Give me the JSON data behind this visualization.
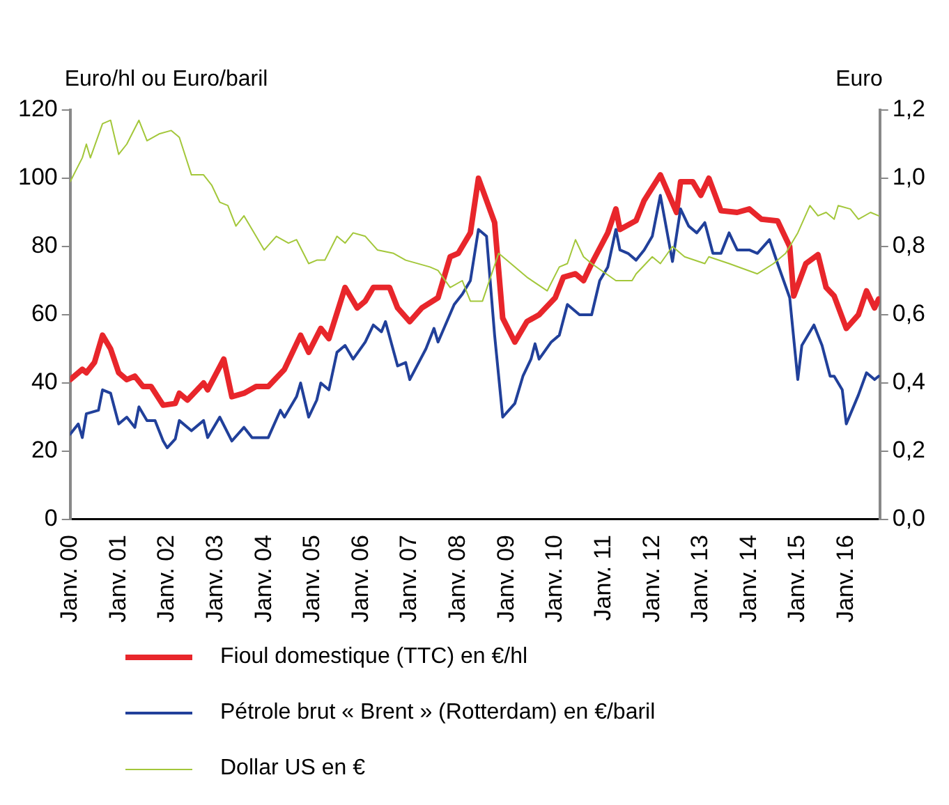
{
  "chart_data": {
    "type": "line",
    "ylabel": "Euro/hl ou Euro/baril",
    "y2label": "Euro",
    "xlim": [
      "2000-01-01",
      "2016-09-10"
    ],
    "xticks": [
      {
        "value": "2000-01",
        "label": "Janv. 00"
      },
      {
        "value": "2001-01",
        "label": "Janv. 01"
      },
      {
        "value": "2002-01",
        "label": "Janv. 02"
      },
      {
        "value": "2003-01",
        "label": "Janv. 03"
      },
      {
        "value": "2004-01",
        "label": "Janv. 04"
      },
      {
        "value": "2005-01",
        "label": "Janv. 05"
      },
      {
        "value": "2006-01",
        "label": "Janv. 06"
      },
      {
        "value": "2007-01",
        "label": "Janv. 07"
      },
      {
        "value": "2008-01",
        "label": "Janv. 08"
      },
      {
        "value": "2009-01",
        "label": "Janv. 09"
      },
      {
        "value": "2010-01",
        "label": "Janv. 10"
      },
      {
        "value": "2011-01",
        "label": "Janv. 11"
      },
      {
        "value": "2012-01",
        "label": "Janv. 12"
      },
      {
        "value": "2013-01",
        "label": "Janv. 13"
      },
      {
        "value": "2014-01",
        "label": "Janv. 14"
      },
      {
        "value": "2015-01",
        "label": "Janv. 15"
      },
      {
        "value": "2016-01",
        "label": "Janv. 16"
      }
    ],
    "ylim": [
      0,
      120
    ],
    "yticks": [
      0,
      20,
      40,
      60,
      80,
      100,
      120
    ],
    "y2lim": [
      0,
      1.2
    ],
    "y2ticks": [
      {
        "value": 0,
        "label": "0,0"
      },
      {
        "value": 0.2,
        "label": "0,2"
      },
      {
        "value": 0.4,
        "label": "0,4"
      },
      {
        "value": 0.6,
        "label": "0,6"
      },
      {
        "value": 0.8,
        "label": "0,8"
      },
      {
        "value": 1,
        "label": "1,0"
      },
      {
        "value": 1.2,
        "label": "1,2"
      }
    ],
    "grid": false,
    "legend": "bottom",
    "marker": "none",
    "line_style": "solid",
    "series": [
      {
        "name": "Fioul domestique (TTC) en €/hl",
        "color": "#e8262b",
        "x": [
          "2000-01",
          "2000-04",
          "2000-05",
          "2000-07",
          "2000-09",
          "2000-11",
          "2001-01",
          "2001-03",
          "2001-05",
          "2001-07",
          "2001-09",
          "2001-12",
          "2002-03",
          "2002-04",
          "2002-06",
          "2002-10",
          "2002-11",
          "2003-03",
          "2003-05",
          "2003-08",
          "2003-11",
          "2004-02",
          "2004-06",
          "2004-10",
          "2004-12",
          "2005-03",
          "2005-05",
          "2005-09",
          "2005-12",
          "2006-02",
          "2006-04",
          "2006-08",
          "2006-10",
          "2007-01",
          "2007-04",
          "2007-08",
          "2007-11",
          "2008-01",
          "2008-04",
          "2008-06",
          "2008-10",
          "2008-12",
          "2009-03",
          "2009-06",
          "2009-09",
          "2010-01",
          "2010-03",
          "2010-06",
          "2010-08",
          "2010-10",
          "2011-02",
          "2011-04",
          "2011-05",
          "2011-09",
          "2011-11",
          "2012-03",
          "2012-07",
          "2012-08",
          "2012-11",
          "2013-01",
          "2013-03",
          "2013-06",
          "2013-10",
          "2014-01",
          "2014-04",
          "2014-08",
          "2014-11",
          "2014-12",
          "2015-03",
          "2015-06",
          "2015-08",
          "2015-10",
          "2016-01",
          "2016-04",
          "2016-06",
          "2016-08",
          "2016-09"
        ],
        "values": [
          41,
          44,
          43,
          46,
          54,
          50,
          43,
          41,
          42,
          39,
          39,
          33.5,
          34,
          37,
          35,
          40,
          38,
          47,
          36,
          37,
          39,
          39,
          44,
          54,
          49,
          56,
          53,
          68,
          62,
          64,
          68,
          68,
          62,
          58,
          62,
          65,
          77,
          78,
          84,
          100,
          87,
          59,
          52,
          58,
          60,
          65,
          71,
          72,
          70,
          75,
          84,
          91,
          85,
          87.6,
          93.5,
          101,
          90,
          99,
          99,
          95,
          100,
          90.5,
          90,
          91,
          88,
          87.5,
          80,
          65.5,
          75,
          77.6,
          68,
          65.5,
          56,
          60,
          67,
          62,
          64.6
        ]
      },
      {
        "name": "Pétrole brut « Brent » (Rotterdam) en €/baril",
        "color": "#21409a",
        "x": [
          "2000-01",
          "2000-03",
          "2000-04",
          "2000-05",
          "2000-08",
          "2000-09",
          "2000-11",
          "2001-01",
          "2001-03",
          "2001-05",
          "2001-06",
          "2001-08",
          "2001-10",
          "2001-12",
          "2002-01",
          "2002-03",
          "2002-04",
          "2002-07",
          "2002-10",
          "2002-11",
          "2003-02",
          "2003-05",
          "2003-08",
          "2003-10",
          "2003-12",
          "2004-02",
          "2004-05",
          "2004-06",
          "2004-09",
          "2004-10",
          "2004-12",
          "2005-02",
          "2005-03",
          "2005-05",
          "2005-07",
          "2005-09",
          "2005-11",
          "2006-02",
          "2006-04",
          "2006-06",
          "2006-07",
          "2006-10",
          "2006-12",
          "2007-01",
          "2007-05",
          "2007-07",
          "2007-08",
          "2007-12",
          "2008-02",
          "2008-04",
          "2008-06",
          "2008-08",
          "2008-10",
          "2008-12",
          "2009-03",
          "2009-05",
          "2009-07",
          "2009-08",
          "2009-09",
          "2009-12",
          "2010-02",
          "2010-04",
          "2010-07",
          "2010-10",
          "2010-12",
          "2011-02",
          "2011-04",
          "2011-05",
          "2011-07",
          "2011-09",
          "2011-11",
          "2012-01",
          "2012-03",
          "2012-06",
          "2012-08",
          "2012-10",
          "2012-12",
          "2013-02",
          "2013-04",
          "2013-06",
          "2013-08",
          "2013-10",
          "2014-01",
          "2014-03",
          "2014-06",
          "2014-08",
          "2014-11",
          "2015-01",
          "2015-02",
          "2015-05",
          "2015-07",
          "2015-09",
          "2015-10",
          "2015-12",
          "2016-01",
          "2016-04",
          "2016-06",
          "2016-08",
          "2016-09"
        ],
        "values": [
          25,
          28,
          24,
          31,
          32,
          38,
          37,
          28,
          30,
          27,
          33,
          29,
          29,
          23,
          21,
          23.6,
          29,
          26,
          29,
          24,
          30,
          23,
          27,
          24,
          24,
          24,
          32,
          30,
          36,
          40,
          30,
          35,
          40,
          38,
          49,
          51,
          47,
          52,
          57,
          55,
          58,
          45,
          46,
          41,
          50,
          56,
          52,
          63,
          66,
          70,
          85,
          83,
          54,
          30,
          34,
          42,
          47,
          51.5,
          47,
          52,
          54,
          63,
          60,
          60,
          70,
          74,
          85,
          79,
          78,
          76,
          79,
          83,
          95,
          75.6,
          91,
          86,
          84,
          87,
          78,
          78,
          84,
          79,
          79,
          78,
          82,
          75,
          65,
          41,
          51,
          57,
          51,
          42,
          42,
          38,
          28,
          36.5,
          43,
          41,
          42
        ]
      },
      {
        "name": "Dollar US en €",
        "color": "#a3c73a",
        "axis": "y2",
        "x": [
          "2000-01",
          "2000-04",
          "2000-05",
          "2000-06",
          "2000-09",
          "2000-11",
          "2001-01",
          "2001-03",
          "2001-06",
          "2001-08",
          "2001-11",
          "2002-02",
          "2002-04",
          "2002-07",
          "2002-10",
          "2002-12",
          "2003-02",
          "2003-04",
          "2003-06",
          "2003-08",
          "2003-10",
          "2004-01",
          "2004-04",
          "2004-07",
          "2004-09",
          "2004-12",
          "2005-02",
          "2005-04",
          "2005-07",
          "2005-09",
          "2005-11",
          "2006-02",
          "2006-05",
          "2006-09",
          "2006-12",
          "2007-06",
          "2007-08",
          "2007-11",
          "2008-02",
          "2008-04",
          "2008-07",
          "2008-11",
          "2009-01",
          "2009-06",
          "2009-11",
          "2010-02",
          "2010-04",
          "2010-06",
          "2010-08",
          "2010-10",
          "2011-04",
          "2011-08",
          "2011-09",
          "2012-01",
          "2012-03",
          "2012-06",
          "2012-09",
          "2013-02",
          "2013-03",
          "2013-08",
          "2014-03",
          "2014-07",
          "2014-10",
          "2015-01",
          "2015-04",
          "2015-06",
          "2015-08",
          "2015-10",
          "2015-11",
          "2016-02",
          "2016-04",
          "2016-07",
          "2016-09"
        ],
        "values": [
          0.99,
          1.06,
          1.1,
          1.06,
          1.16,
          1.17,
          1.07,
          1.1,
          1.17,
          1.11,
          1.13,
          1.14,
          1.12,
          1.01,
          1.01,
          0.98,
          0.93,
          0.92,
          0.86,
          0.89,
          0.85,
          0.79,
          0.83,
          0.81,
          0.82,
          0.75,
          0.76,
          0.76,
          0.83,
          0.81,
          0.84,
          0.83,
          0.79,
          0.78,
          0.76,
          0.74,
          0.73,
          0.68,
          0.7,
          0.64,
          0.64,
          0.78,
          0.76,
          0.71,
          0.67,
          0.74,
          0.75,
          0.82,
          0.77,
          0.75,
          0.7,
          0.7,
          0.72,
          0.77,
          0.75,
          0.8,
          0.77,
          0.75,
          0.77,
          0.75,
          0.72,
          0.75,
          0.78,
          0.84,
          0.92,
          0.89,
          0.9,
          0.88,
          0.92,
          0.91,
          0.88,
          0.9,
          0.89
        ]
      }
    ]
  }
}
